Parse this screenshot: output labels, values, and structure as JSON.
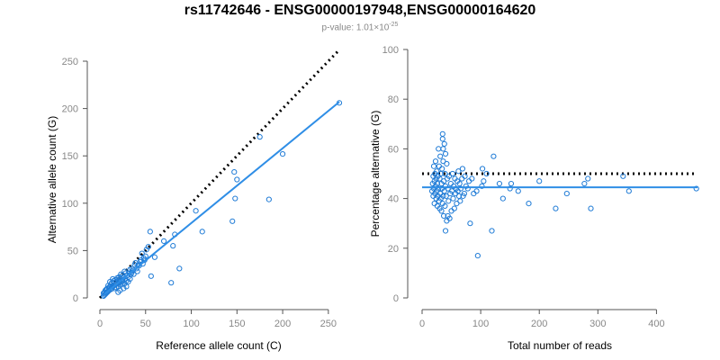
{
  "header": {
    "title": "rs11742646 - ENSG00000197948,ENSG00000164620",
    "pvalue_prefix": "p-value: 1.01×10",
    "pvalue_exponent": "-25"
  },
  "colors": {
    "points": "#1f7bd6",
    "fit": "#2f8ee6",
    "reference": "#000000"
  },
  "chart_data": [
    {
      "type": "scatter",
      "xlabel": "Reference allele count (C)",
      "ylabel": "Alternative allele count (G)",
      "xlim": [
        0,
        260
      ],
      "ylim": [
        0,
        250
      ],
      "xticks": [
        0,
        50,
        100,
        150,
        200,
        250
      ],
      "yticks": [
        0,
        50,
        100,
        150,
        200,
        250
      ],
      "grid": false,
      "reference_line": {
        "style": "dotted",
        "x": [
          0,
          262
        ],
        "y": [
          0,
          262
        ]
      },
      "fit_line": {
        "x": [
          5,
          262
        ],
        "y": [
          4,
          207
        ]
      },
      "points": [
        [
          262,
          206
        ],
        [
          200,
          152
        ],
        [
          185,
          104
        ],
        [
          175,
          170
        ],
        [
          150,
          125
        ],
        [
          148,
          105
        ],
        [
          147,
          133
        ],
        [
          145,
          81
        ],
        [
          112,
          70
        ],
        [
          105,
          92
        ],
        [
          87,
          31
        ],
        [
          82,
          67
        ],
        [
          80,
          55
        ],
        [
          78,
          16
        ],
        [
          70,
          60
        ],
        [
          60,
          43
        ],
        [
          56,
          23
        ],
        [
          55,
          70
        ],
        [
          53,
          54
        ],
        [
          51,
          51
        ],
        [
          50,
          44
        ],
        [
          49,
          40
        ],
        [
          48,
          42
        ],
        [
          45,
          40
        ],
        [
          44,
          38
        ],
        [
          43,
          34
        ],
        [
          42,
          35
        ],
        [
          41,
          28
        ],
        [
          40,
          31
        ],
        [
          38,
          35
        ],
        [
          37,
          25
        ],
        [
          36,
          29
        ],
        [
          35,
          27
        ],
        [
          34,
          25
        ],
        [
          33,
          20
        ],
        [
          33,
          30
        ],
        [
          32,
          26
        ],
        [
          31,
          22
        ],
        [
          30,
          24
        ],
        [
          29,
          18
        ],
        [
          28,
          20
        ],
        [
          28,
          26
        ],
        [
          27,
          15
        ],
        [
          27,
          28
        ],
        [
          26,
          22
        ],
        [
          25,
          19
        ],
        [
          25,
          24
        ],
        [
          24,
          17
        ],
        [
          24,
          21
        ],
        [
          23,
          14
        ],
        [
          23,
          25
        ],
        [
          22,
          18
        ],
        [
          22,
          20
        ],
        [
          21,
          16
        ],
        [
          21,
          22
        ],
        [
          20,
          12
        ],
        [
          20,
          19
        ],
        [
          19,
          15
        ],
        [
          19,
          21
        ],
        [
          18,
          11
        ],
        [
          18,
          17
        ],
        [
          17,
          14
        ],
        [
          17,
          19
        ],
        [
          16,
          10
        ],
        [
          16,
          16
        ],
        [
          15,
          13
        ],
        [
          15,
          18
        ],
        [
          14,
          12
        ],
        [
          14,
          20
        ],
        [
          13,
          10
        ],
        [
          13,
          16
        ],
        [
          12,
          9
        ],
        [
          12,
          14
        ],
        [
          11,
          12
        ],
        [
          11,
          17
        ],
        [
          10,
          8
        ],
        [
          10,
          11
        ],
        [
          9,
          7
        ],
        [
          9,
          13
        ],
        [
          8,
          6
        ],
        [
          8,
          10
        ],
        [
          7,
          5
        ],
        [
          7,
          9
        ],
        [
          6,
          4
        ],
        [
          6,
          8
        ],
        [
          5,
          3
        ],
        [
          5,
          6
        ],
        [
          4,
          2
        ],
        [
          4,
          5
        ],
        [
          25,
          15
        ],
        [
          26,
          10
        ],
        [
          22,
          8
        ],
        [
          20,
          6
        ],
        [
          29,
          12
        ],
        [
          31,
          17
        ],
        [
          35,
          31
        ],
        [
          39,
          37
        ],
        [
          46,
          47
        ],
        [
          47,
          36
        ]
      ]
    },
    {
      "type": "scatter",
      "xlabel": "Total number of reads",
      "ylabel": "Percentage alternative (G)",
      "xlim": [
        0,
        470
      ],
      "ylim": [
        0,
        100
      ],
      "xticks": [
        0,
        100,
        200,
        300,
        400
      ],
      "yticks": [
        0,
        20,
        40,
        60,
        80,
        100
      ],
      "grid": false,
      "reference_line": {
        "style": "dotted",
        "x": [
          0,
          470
        ],
        "y": [
          50,
          50
        ]
      },
      "fit_line": {
        "x": [
          0,
          470
        ],
        "y": [
          44.5,
          44.5
        ]
      },
      "points": [
        [
          468,
          44
        ],
        [
          353,
          43
        ],
        [
          343,
          49
        ],
        [
          288,
          36
        ],
        [
          283,
          48
        ],
        [
          277,
          46
        ],
        [
          247,
          42
        ],
        [
          228,
          36
        ],
        [
          200,
          47
        ],
        [
          182,
          38
        ],
        [
          164,
          43
        ],
        [
          152,
          46
        ],
        [
          150,
          44
        ],
        [
          138,
          40
        ],
        [
          132,
          46
        ],
        [
          122,
          57
        ],
        [
          119,
          27
        ],
        [
          110,
          50
        ],
        [
          105,
          47
        ],
        [
          103,
          52
        ],
        [
          102,
          45
        ],
        [
          95,
          17
        ],
        [
          93,
          43
        ],
        [
          88,
          42
        ],
        [
          85,
          48
        ],
        [
          82,
          30
        ],
        [
          80,
          47
        ],
        [
          78,
          44
        ],
        [
          75,
          45
        ],
        [
          73,
          49
        ],
        [
          72,
          42
        ],
        [
          70,
          41
        ],
        [
          69,
          52
        ],
        [
          68,
          48
        ],
        [
          66,
          44
        ],
        [
          65,
          39
        ],
        [
          64,
          46
        ],
        [
          63,
          41
        ],
        [
          62,
          51
        ],
        [
          61,
          43
        ],
        [
          60,
          47
        ],
        [
          59,
          38
        ],
        [
          58,
          44
        ],
        [
          57,
          42
        ],
        [
          56,
          48
        ],
        [
          55,
          36
        ],
        [
          54,
          45
        ],
        [
          53,
          40
        ],
        [
          52,
          50
        ],
        [
          51,
          43
        ],
        [
          50,
          35
        ],
        [
          49,
          46
        ],
        [
          48,
          42
        ],
        [
          47,
          32
        ],
        [
          46,
          49
        ],
        [
          45,
          39
        ],
        [
          44,
          44
        ],
        [
          43,
          48
        ],
        [
          42,
          31
        ],
        [
          42,
          54
        ],
        [
          41,
          41
        ],
        [
          40,
          45
        ],
        [
          40,
          58
        ],
        [
          39,
          37
        ],
        [
          39,
          50
        ],
        [
          38,
          43
        ],
        [
          38,
          62
        ],
        [
          37,
          33
        ],
        [
          37,
          47
        ],
        [
          36,
          41
        ],
        [
          36,
          55
        ],
        [
          35,
          38
        ],
        [
          35,
          64
        ],
        [
          34,
          44
        ],
        [
          34,
          52
        ],
        [
          33,
          35
        ],
        [
          33,
          46
        ],
        [
          32,
          40
        ],
        [
          32,
          50
        ],
        [
          31,
          42
        ],
        [
          31,
          57
        ],
        [
          30,
          36
        ],
        [
          30,
          48
        ],
        [
          29,
          39
        ],
        [
          29,
          53
        ],
        [
          28,
          44
        ],
        [
          28,
          60
        ],
        [
          27,
          41
        ],
        [
          27,
          49
        ],
        [
          26,
          37
        ],
        [
          26,
          46
        ],
        [
          25,
          43
        ],
        [
          25,
          51
        ],
        [
          24,
          40
        ],
        [
          24,
          48
        ],
        [
          23,
          45
        ],
        [
          23,
          55
        ],
        [
          22,
          42
        ],
        [
          22,
          50
        ],
        [
          21,
          38
        ],
        [
          21,
          47
        ],
        [
          20,
          44
        ],
        [
          20,
          53
        ],
        [
          19,
          41
        ],
        [
          19,
          49
        ],
        [
          18,
          46
        ],
        [
          17,
          43
        ],
        [
          40,
          27
        ],
        [
          44,
          33
        ],
        [
          36,
          60
        ],
        [
          35,
          66
        ]
      ]
    }
  ]
}
